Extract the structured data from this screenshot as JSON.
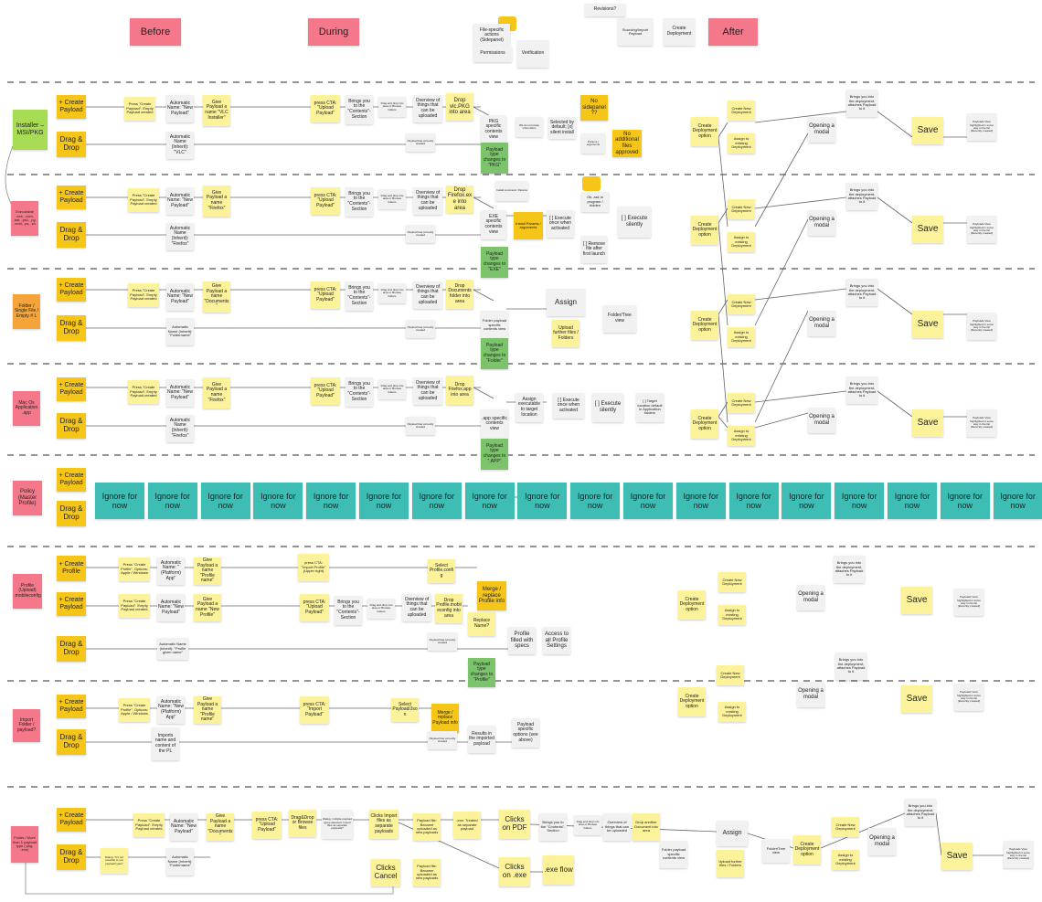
{
  "palette": {
    "pink": "#f4788a",
    "gold": "#f5c518",
    "yellow": "#fcf29a",
    "white": "#f1f1f1",
    "green": "#7cc46c",
    "lime": "#a9dc55",
    "orange": "#f5a43a",
    "teal": "#3dbdb4"
  },
  "notes": [
    {
      "text": "Before",
      "color": "pink"
    },
    {
      "text": "During",
      "color": "pink"
    },
    {
      "text": "After",
      "color": "pink"
    },
    {
      "text": "Revisions?",
      "color": "white"
    },
    {
      "text": "File-specific actions (Sidepanel)",
      "color": "white"
    },
    {
      "text": "Permissions",
      "color": "white"
    },
    {
      "text": "Verification",
      "color": "white"
    },
    {
      "text": "Sourcing/Import Payload",
      "color": "white"
    },
    {
      "text": "Create Deployment",
      "color": "white"
    },
    {
      "text": "Installer – MSI/PKG",
      "color": "lime"
    },
    {
      "text": "+ Create Payload",
      "color": "gold"
    },
    {
      "text": "Drag & Drop",
      "color": "gold"
    },
    {
      "text": "Press \"Create Payload\". Empty Payload created",
      "color": "yellow"
    },
    {
      "text": "Automatic Name: \"New Payload\"",
      "color": "white"
    },
    {
      "text": "Give Payload a name \"VLC Installer\"",
      "color": "yellow"
    },
    {
      "text": "Automatic Name (Inherit): \"VLC\"",
      "color": "white"
    },
    {
      "text": "press CTA: \"Upload Payload\"",
      "color": "yellow"
    },
    {
      "text": "Brings you to the \"Contents\"-Section",
      "color": "white"
    },
    {
      "text": "Drag and drop into area or Browse folders",
      "color": "white"
    },
    {
      "text": "Overview of things that can be uploaded",
      "color": "white"
    },
    {
      "text": "Drop vlc.PKG into area",
      "color": "yellow"
    },
    {
      "text": "Payload has correctly created",
      "color": "white"
    },
    {
      "text": "PKG specific contents view",
      "color": "white"
    },
    {
      "text": "Payload type changes to \"PKG\"",
      "color": "green"
    },
    {
      "text": "We do not parse information",
      "color": "white"
    },
    {
      "text": "Selected by default; [x] silent install",
      "color": "white"
    },
    {
      "text": "No sidepanel??",
      "color": "gold"
    },
    {
      "text": "Params / arguments",
      "color": "white"
    },
    {
      "text": "No additional files approved",
      "color": "gold"
    },
    {
      "text": "Create Deployment option",
      "color": "yellow"
    },
    {
      "text": "Create New Deployment",
      "color": "yellow"
    },
    {
      "text": "Assign to existing Deployment",
      "color": "yellow"
    },
    {
      "text": "Opening a modal",
      "color": "white"
    },
    {
      "text": "Brings you into the deployment, attaches Payload to it",
      "color": "white"
    },
    {
      "text": "Save",
      "color": "yellow"
    },
    {
      "text": "Payloads View highlighted in some way in the list (Recently created)",
      "color": "white"
    },
    {
      "text": "Executable .exe, .com, .bat, .ps1, .py, .cmd, .ps, .sh",
      "color": "pink"
    },
    {
      "text": "+ Create Payload",
      "color": "gold"
    },
    {
      "text": "Drag & Drop",
      "color": "gold"
    },
    {
      "text": "Press \"Create Payload\". Empty Payload created",
      "color": "yellow"
    },
    {
      "text": "Automatic Name: \"New Payload\"",
      "color": "white"
    },
    {
      "text": "Give Payload a name \"Firefox\"",
      "color": "yellow"
    },
    {
      "text": "Automatic Name (Inherit): \"Firefox\"",
      "color": "white"
    },
    {
      "text": "press CTA: \"Upload Payload\"",
      "color": "yellow"
    },
    {
      "text": "Brings you to the \"Contents\"-Section",
      "color": "white"
    },
    {
      "text": "Drag and drop into area or Browse folders",
      "color": "white"
    },
    {
      "text": "Overview of things that can be uploaded",
      "color": "white"
    },
    {
      "text": "Drop Firefox.exe into area",
      "color": "yellow"
    },
    {
      "text": "Payload has correctly created",
      "color": "white"
    },
    {
      "text": "Install command: Params",
      "color": "white"
    },
    {
      "text": "EXE specific contents view",
      "color": "white"
    },
    {
      "text": "Payload type changes to \"EXE\"",
      "color": "green"
    },
    {
      "text": "Install Params / arguments",
      "color": "gold"
    },
    {
      "text": "[ ] Execute once when activated",
      "color": "white"
    },
    {
      "text": "Ok, ask in program / hidden",
      "color": "white"
    },
    {
      "text": "[ ] Remove file after first launch",
      "color": "white"
    },
    {
      "text": "[ ] Execute silently",
      "color": "white"
    },
    {
      "text": "Create Deployment option",
      "color": "yellow"
    },
    {
      "text": "Create New Deployment",
      "color": "yellow"
    },
    {
      "text": "Assign to existing Deployment",
      "color": "yellow"
    },
    {
      "text": "Opening a modal",
      "color": "white"
    },
    {
      "text": "Brings you into the deployment, attaches Payload to it",
      "color": "white"
    },
    {
      "text": "Save",
      "color": "yellow"
    },
    {
      "text": "Payloads View highlighted in some way in the list (Recently created)",
      "color": "white"
    },
    {
      "text": "Folder / Single File / Empty # L",
      "color": "orange"
    },
    {
      "text": "+ Create Payload",
      "color": "gold"
    },
    {
      "text": "Drag & Drop",
      "color": "gold"
    },
    {
      "text": "Press \"Create Payload\". Empty Payload created",
      "color": "yellow"
    },
    {
      "text": "Automatic Name: \"New Payload\"",
      "color": "white"
    },
    {
      "text": "Give Payload a name \"Documents\"",
      "color": "yellow"
    },
    {
      "text": "Automatic Name (Inherit): \"Foldername\"",
      "color": "white"
    },
    {
      "text": "press CTA: \"Upload Payload\"",
      "color": "yellow"
    },
    {
      "text": "Brings you to the \"Contents\"-Section",
      "color": "white"
    },
    {
      "text": "Drag and drop into area or Browse folders",
      "color": "white"
    },
    {
      "text": "Overview of things that can be uploaded",
      "color": "white"
    },
    {
      "text": "Drop Documents folder into area",
      "color": "yellow"
    },
    {
      "text": "Payload has correctly created",
      "color": "white"
    },
    {
      "text": "Folder payload specific contents view",
      "color": "white"
    },
    {
      "text": "Payload type changes to \"Folder\"",
      "color": "green"
    },
    {
      "text": "Assign",
      "color": "white"
    },
    {
      "text": "Upload further files / Folders",
      "color": "yellow"
    },
    {
      "text": "Folder/Tree view",
      "color": "white"
    },
    {
      "text": "Create Deployment option",
      "color": "yellow"
    },
    {
      "text": "Create New Deployment",
      "color": "yellow"
    },
    {
      "text": "Assign to existing Deployment",
      "color": "yellow"
    },
    {
      "text": "Opening a modal",
      "color": "white"
    },
    {
      "text": "Brings you into the deployment, attaches Payload to it",
      "color": "white"
    },
    {
      "text": "Save",
      "color": "yellow"
    },
    {
      "text": "Payloads View highlighted in some way in the list (Recently created)",
      "color": "white"
    },
    {
      "text": "Mac Os Application .app",
      "color": "pink"
    },
    {
      "text": "+ Create Payload",
      "color": "gold"
    },
    {
      "text": "Drag & Drop",
      "color": "gold"
    },
    {
      "text": "Press \"Create Payload\". Empty Payload created",
      "color": "yellow"
    },
    {
      "text": "Automatic Name: \"New Payload\"",
      "color": "white"
    },
    {
      "text": "Give Payload a name \"Firefox\"",
      "color": "yellow"
    },
    {
      "text": "Automatic Name (Inherit): \"Firefox\"",
      "color": "white"
    },
    {
      "text": "press CTA: \"Upload Payload\"",
      "color": "yellow"
    },
    {
      "text": "Brings you to the \"Contents\"-Section",
      "color": "white"
    },
    {
      "text": "Drag and drop into area or Browse folders",
      "color": "white"
    },
    {
      "text": "Overview of things that can be uploaded",
      "color": "white"
    },
    {
      "text": "Drop Firefox.app into area",
      "color": "yellow"
    },
    {
      "text": "Payload has correctly created",
      "color": "white"
    },
    {
      "text": ".app specific contents view",
      "color": "white"
    },
    {
      "text": "Payload type changes to \".APP\"",
      "color": "green"
    },
    {
      "text": "Assign executable to target location",
      "color": "white"
    },
    {
      "text": "[ ] Execute once when activated",
      "color": "white"
    },
    {
      "text": "[ ] Execute silently",
      "color": "white"
    },
    {
      "text": "[ ] Target location default in Application folders",
      "color": "white"
    },
    {
      "text": "Create Deployment option",
      "color": "yellow"
    },
    {
      "text": "Create New Deployment",
      "color": "yellow"
    },
    {
      "text": "Assign to existing Deployment",
      "color": "yellow"
    },
    {
      "text": "Opening a modal",
      "color": "white"
    },
    {
      "text": "Brings you into the deployment, attaches Payload to it",
      "color": "white"
    },
    {
      "text": "Save",
      "color": "yellow"
    },
    {
      "text": "Payloads View highlighted in some way in the list (Recently created)",
      "color": "white"
    },
    {
      "text": "Policy (Master Profile)",
      "color": "pink"
    },
    {
      "text": "+ Create Payload",
      "color": "gold"
    },
    {
      "text": "Drag & Drop",
      "color": "gold"
    },
    {
      "text": "Ignore for now",
      "color": "teal"
    },
    {
      "text": "Ignore for now",
      "color": "teal"
    },
    {
      "text": "Ignore for now",
      "color": "teal"
    },
    {
      "text": "Ignore for now",
      "color": "teal"
    },
    {
      "text": "Ignore for now",
      "color": "teal"
    },
    {
      "text": "Ignore for now",
      "color": "teal"
    },
    {
      "text": "Ignore for now",
      "color": "teal"
    },
    {
      "text": "Ignore for now",
      "color": "teal"
    },
    {
      "text": "Ignore for now",
      "color": "teal"
    },
    {
      "text": "Ignore for now",
      "color": "teal"
    },
    {
      "text": "Ignore for now",
      "color": "teal"
    },
    {
      "text": "Ignore for now",
      "color": "teal"
    },
    {
      "text": "Ignore for now",
      "color": "teal"
    },
    {
      "text": "Ignore for now",
      "color": "teal"
    },
    {
      "text": "Ignore for now",
      "color": "teal"
    },
    {
      "text": "Ignore for now",
      "color": "teal"
    },
    {
      "text": "Ignore for now",
      "color": "teal"
    },
    {
      "text": "Ignore for now",
      "color": "teal"
    },
    {
      "text": "Profile (Upload) .mobileconfig",
      "color": "pink"
    },
    {
      "text": "+ Create Profile",
      "color": "gold"
    },
    {
      "text": "+ Create Payload",
      "color": "gold"
    },
    {
      "text": "Drag & Drop",
      "color": "gold"
    },
    {
      "text": "Press \"Create Profile\". Options: Apple / Windows",
      "color": "yellow"
    },
    {
      "text": "Automatic Name: \"(Platform) App\"",
      "color": "white"
    },
    {
      "text": "Give Payload a name \"Profile name\"",
      "color": "yellow"
    },
    {
      "text": "Press \"Create Payload\". Empty Payload created",
      "color": "yellow"
    },
    {
      "text": "Automatic Name: \"New Payload\"",
      "color": "white"
    },
    {
      "text": "Give Payload a name \"New Profile\"",
      "color": "yellow"
    },
    {
      "text": "Automatic Name (Inherit): \"Profile given name\"",
      "color": "white"
    },
    {
      "text": "press CTA: \"Import Profile\" (Upper right)",
      "color": "yellow"
    },
    {
      "text": "press CTA: \"Upload Payload\"",
      "color": "yellow"
    },
    {
      "text": "Brings you to the \"Contents\"-Section",
      "color": "white"
    },
    {
      "text": "Drag and drop into area or Browse folders",
      "color": "white"
    },
    {
      "text": "Overview of things that can be uploaded",
      "color": "white"
    },
    {
      "text": "Drop Profile.mobileconfig into area",
      "color": "yellow"
    },
    {
      "text": "Select Profile.config",
      "color": "yellow"
    },
    {
      "text": "Merge / replace Profile info",
      "color": "gold"
    },
    {
      "text": "Replace Name?",
      "color": "yellow"
    },
    {
      "text": "Payload has correctly created",
      "color": "white"
    },
    {
      "text": "Profile filled with specs",
      "color": "white"
    },
    {
      "text": "Access to all Profile Settings",
      "color": "white"
    },
    {
      "text": "Payload type changes to \"Profile\"",
      "color": "green"
    },
    {
      "text": "Create Deployment option",
      "color": "yellow"
    },
    {
      "text": "Create New Deployment",
      "color": "yellow"
    },
    {
      "text": "Assign to existing Deployment",
      "color": "yellow"
    },
    {
      "text": "Opening a modal",
      "color": "white"
    },
    {
      "text": "Brings you into the deployment, attaches Payload to it",
      "color": "white"
    },
    {
      "text": "Save",
      "color": "yellow"
    },
    {
      "text": "Payloads View highlighted in some way in the list (Recently created)",
      "color": "white"
    },
    {
      "text": "Import Folder / payload?",
      "color": "pink"
    },
    {
      "text": "+ Create Payload",
      "color": "gold"
    },
    {
      "text": "Drag & Drop",
      "color": "gold"
    },
    {
      "text": "Press \"Create Profile\". Options: Apple / Windows",
      "color": "yellow"
    },
    {
      "text": "Automatic Name: \"New (Platform) App\"",
      "color": "white"
    },
    {
      "text": "Give Payload a name \"Profile name\"",
      "color": "yellow"
    },
    {
      "text": "Imports name and content of the PL",
      "color": "white"
    },
    {
      "text": "press CTA: \"Import Payload\"",
      "color": "yellow"
    },
    {
      "text": "Select Payload/Json",
      "color": "yellow"
    },
    {
      "text": "Merge / replace Payload info",
      "color": "gold"
    },
    {
      "text": "Payload has correctly created",
      "color": "white"
    },
    {
      "text": "Results in the imported payload",
      "color": "white"
    },
    {
      "text": "Payload specific options (see above)",
      "color": "white"
    },
    {
      "text": "Create New Deployment",
      "color": "yellow"
    },
    {
      "text": "Create Deployment option",
      "color": "yellow"
    },
    {
      "text": "Assign to existing Deployment",
      "color": "yellow"
    },
    {
      "text": "Opening a modal",
      "color": "white"
    },
    {
      "text": "Brings you into the deployment, attaches Payload to it",
      "color": "white"
    },
    {
      "text": "Save",
      "color": "yellow"
    },
    {
      "text": "Payloads View highlighted in some way in the list (Recently created)",
      "color": "white"
    },
    {
      "text": "Folder / More than 1 payload type (.pkg, .exe)",
      "color": "pink"
    },
    {
      "text": "+ Create Payload",
      "color": "gold"
    },
    {
      "text": "Drag & Drop",
      "color": "gold"
    },
    {
      "text": "Press \"Create Payload\". Empty Payload created",
      "color": "yellow"
    },
    {
      "text": "Automatic Name: \"New Payload\"",
      "color": "white"
    },
    {
      "text": "Give Payload a name \"Documents\"",
      "color": "yellow"
    },
    {
      "text": "Dialog: \"It's not possible to mix payload types\"",
      "color": "yellow"
    },
    {
      "text": "Automatic Name (Inherit): \"Foldername\"",
      "color": "white"
    },
    {
      "text": "press CTA: \"Upload Payload\"",
      "color": "yellow"
    },
    {
      "text": "Drag&Drop or Browse files",
      "color": "yellow"
    },
    {
      "text": "Dialog: multiple payload types detected. Import files as separate payloads?",
      "color": "white"
    },
    {
      "text": "Clicks Import files as separate payloads",
      "color": "yellow"
    },
    {
      "text": "Clicks Cancel",
      "color": "yellow"
    },
    {
      "text": "Payload file: Became uploaded as new payloads",
      "color": "yellow"
    },
    {
      "text": "Payload file: Became uploaded as new payloads",
      "color": "yellow"
    },
    {
      "text": ".exe: Treated as separate payload",
      "color": "yellow"
    },
    {
      "text": "Clicks on PDF",
      "color": "yellow"
    },
    {
      "text": "Clicks on .exe",
      "color": "yellow"
    },
    {
      "text": ".exe flow",
      "color": "yellow"
    },
    {
      "text": "Brings you to the \"Contents\"-Section",
      "color": "white"
    },
    {
      "text": "Drag and drop into area or Browse folders",
      "color": "white"
    },
    {
      "text": "Overview of things that can be uploaded",
      "color": "white"
    },
    {
      "text": "Drop another Document into area",
      "color": "yellow"
    },
    {
      "text": "Folder payload specific contents view",
      "color": "white"
    },
    {
      "text": "Assign",
      "color": "white"
    },
    {
      "text": "Upload further files / Folders",
      "color": "yellow"
    },
    {
      "text": "Folder/Tree view",
      "color": "white"
    },
    {
      "text": "Create Deployment option",
      "color": "yellow"
    },
    {
      "text": "Create New Deployment",
      "color": "yellow"
    },
    {
      "text": "Assign to existing Deployment",
      "color": "yellow"
    },
    {
      "text": "Opening a modal",
      "color": "white"
    },
    {
      "text": "Brings you into the deployment, attaches Payload to it",
      "color": "white"
    },
    {
      "text": "Save",
      "color": "yellow"
    },
    {
      "text": "Payloads View highlighted in some way in the list (Recently created)",
      "color": "white"
    }
  ]
}
